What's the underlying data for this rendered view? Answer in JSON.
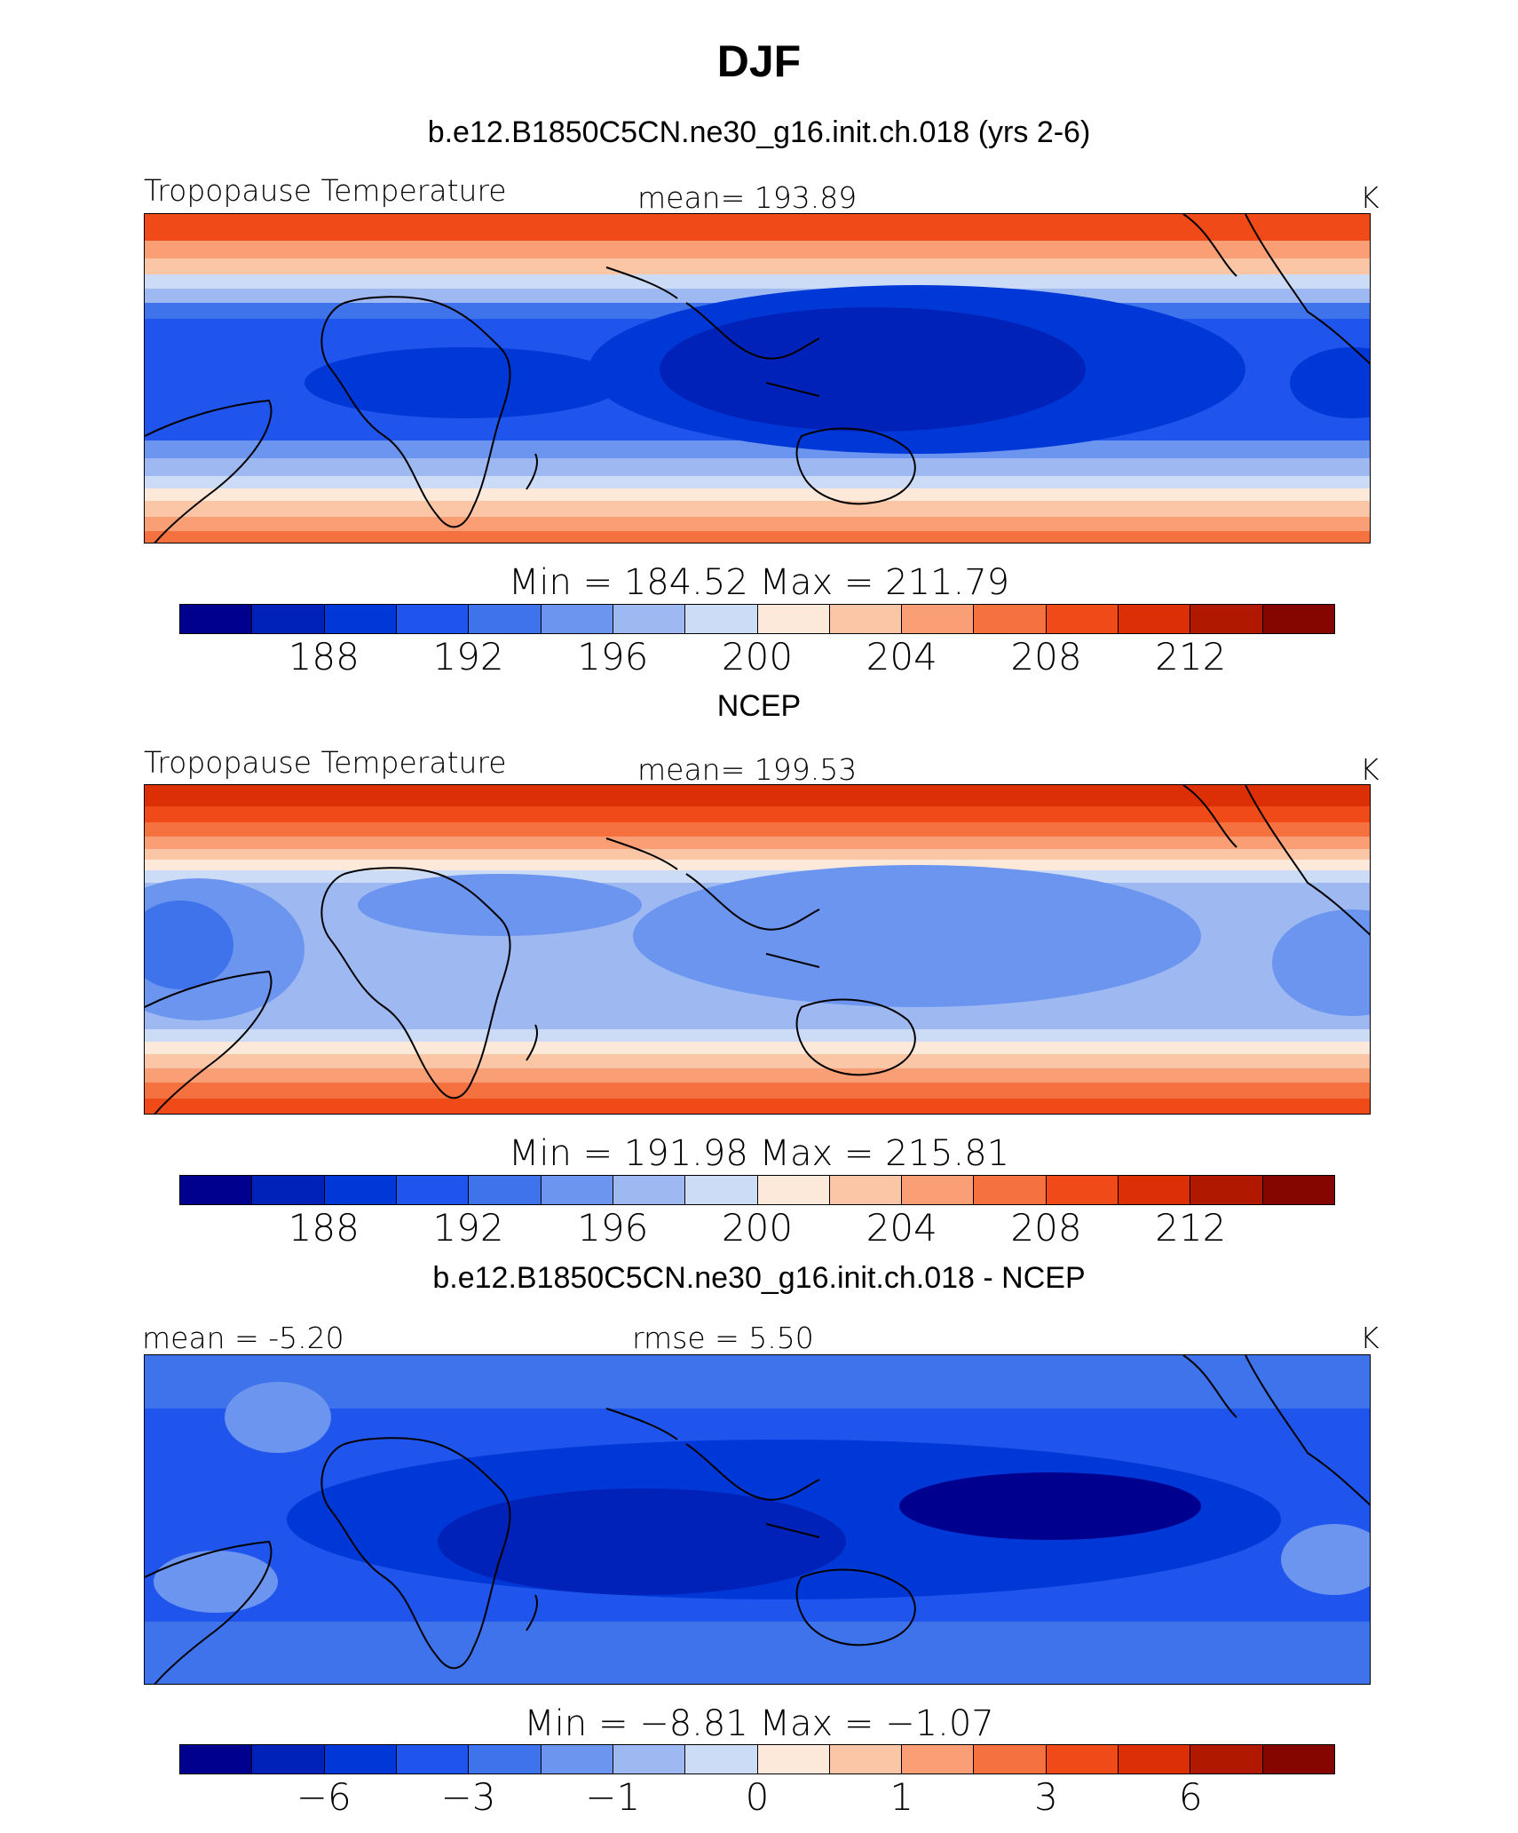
{
  "title": "DJF",
  "units": "K",
  "palette": [
    "#00008f",
    "#0022b8",
    "#0038d8",
    "#1f55ec",
    "#3f73ec",
    "#6b95ef",
    "#9eb9f2",
    "#cddcf6",
    "#fde9d9",
    "#fbc6a6",
    "#f99e75",
    "#f5713f",
    "#f04a18",
    "#dc2f05",
    "#b01800",
    "#850600"
  ],
  "panels": [
    {
      "subtitle": "b.e12.B1850C5CN.ne30_g16.init.ch.018 (yrs 2-6)",
      "left_label": "Tropopause Temperature",
      "center_label": "mean= 193.89",
      "right_label": "K",
      "minmax": "Min = 184.52 Max = 211.79",
      "tick_labels": [
        "188",
        "192",
        "196",
        "200",
        "204",
        "208",
        "212"
      ]
    },
    {
      "subtitle": "NCEP",
      "left_label": "Tropopause Temperature",
      "center_label": "mean= 199.53",
      "right_label": "K",
      "minmax": "Min = 191.98 Max = 215.81",
      "tick_labels": [
        "188",
        "192",
        "196",
        "200",
        "204",
        "208",
        "212"
      ]
    },
    {
      "subtitle": "b.e12.B1850C5CN.ne30_g16.init.ch.018 - NCEP",
      "left_label": "mean = -5.20",
      "center_label": "rmse = 5.50",
      "right_label": "K",
      "minmax": "Min = −8.81 Max = −1.07",
      "tick_labels": [
        "−6",
        "−3",
        "−1",
        "0",
        "1",
        "3",
        "6"
      ]
    }
  ]
}
